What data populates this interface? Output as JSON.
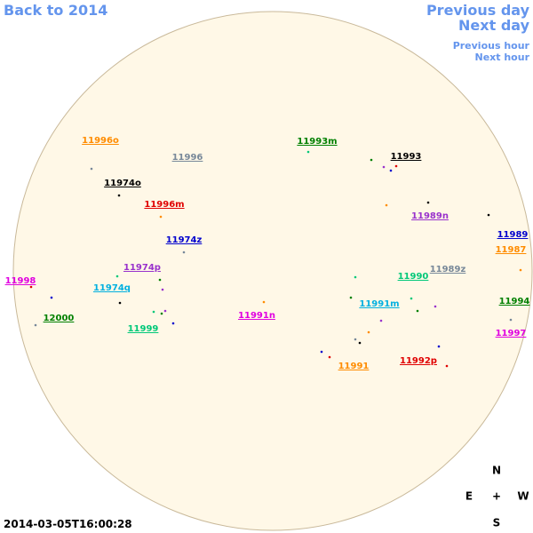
{
  "nav": {
    "back": "Back to 2014",
    "previous_day": "Previous day",
    "next_day": "Next day",
    "previous_hour": "Previous hour",
    "next_hour": "Next hour"
  },
  "regions": [
    "11996o",
    "11996",
    "11974o",
    "11996m",
    "11993m",
    "11993",
    "11989n",
    "11989",
    "11987",
    "11974z",
    "11989z",
    "11974p",
    "11990",
    "11998",
    "11974q",
    "11994",
    "11991m",
    "12000",
    "11991n",
    "11999",
    "11997",
    "11992p",
    "11991"
  ],
  "compass": {
    "north": "N",
    "east": "E",
    "center": "+",
    "west": "W",
    "south": "S"
  },
  "timestamp": "2014-03-05T16:00:28"
}
